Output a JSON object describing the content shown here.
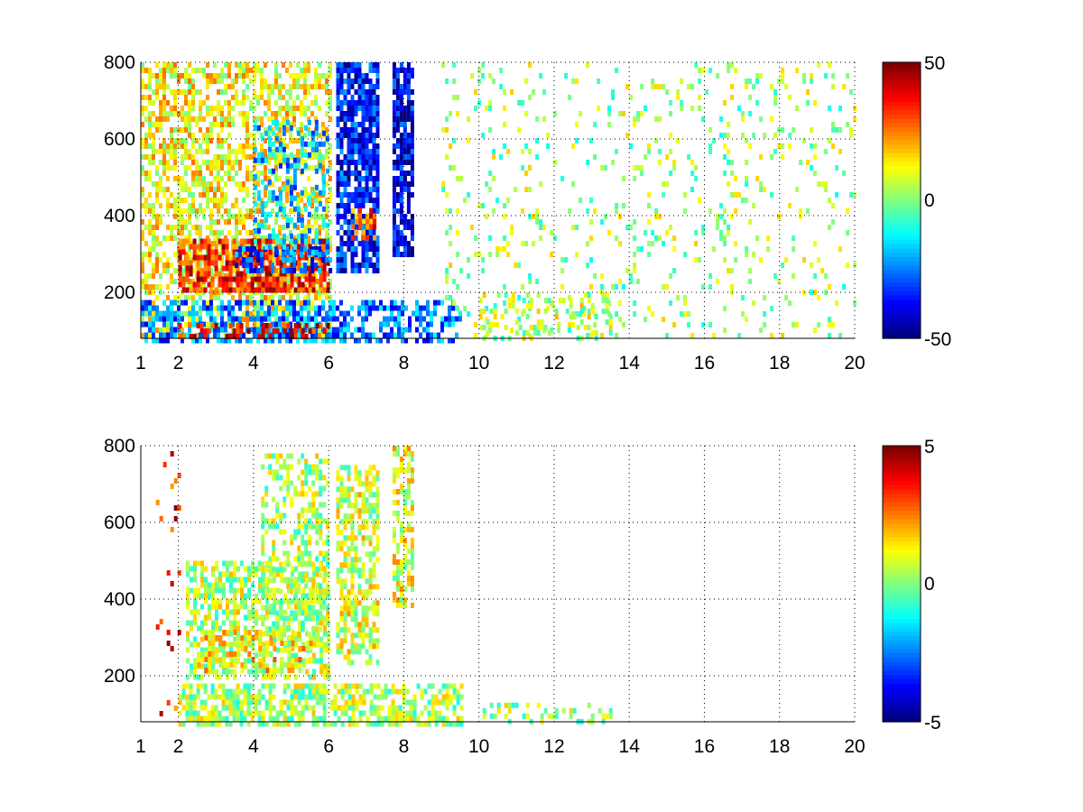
{
  "figure": {
    "background": "#ffffff",
    "colormap": "jet"
  },
  "chart_data": [
    {
      "type": "heatmap",
      "title": "",
      "xlabel": "",
      "ylabel": "",
      "xlim": [
        1,
        20
      ],
      "ylim": [
        80,
        800
      ],
      "x_ticks": [
        "1",
        "2",
        "4",
        "6",
        "8",
        "10",
        "12",
        "14",
        "16",
        "18",
        "20"
      ],
      "y_ticks": [
        "200",
        "400",
        "600",
        "800"
      ],
      "grid": true,
      "colorbar": {
        "min": -50,
        "max": 50,
        "labels": [
          "50",
          "0",
          "-50"
        ]
      },
      "features": [
        {
          "x0": 1.0,
          "x1": 6.0,
          "y0": 80,
          "y1": 800,
          "value": 12,
          "density": 0.55
        },
        {
          "x0": 2.0,
          "x1": 6.0,
          "y0": 200,
          "y1": 340,
          "value": 35,
          "density": 0.7
        },
        {
          "x0": 3.5,
          "x1": 6.0,
          "y0": 250,
          "y1": 320,
          "value": -30,
          "density": 0.45
        },
        {
          "x0": 4.0,
          "x1": 6.0,
          "y0": 300,
          "y1": 650,
          "value": -20,
          "density": 0.35
        },
        {
          "x0": 6.2,
          "x1": 7.3,
          "y0": 250,
          "y1": 800,
          "value": -35,
          "density": 0.8
        },
        {
          "x0": 6.6,
          "x1": 7.2,
          "y0": 340,
          "y1": 420,
          "value": 30,
          "density": 0.6
        },
        {
          "x0": 7.7,
          "x1": 8.2,
          "y0": 300,
          "y1": 800,
          "value": -40,
          "density": 0.8
        },
        {
          "x0": 1.0,
          "x1": 9.5,
          "y0": 80,
          "y1": 180,
          "value": -25,
          "density": 0.6
        },
        {
          "x0": 2.0,
          "x1": 6.0,
          "y0": 80,
          "y1": 120,
          "value": 40,
          "density": 0.5
        },
        {
          "x0": 9.0,
          "x1": 20.0,
          "y0": 80,
          "y1": 800,
          "value": 3,
          "density": 0.1
        },
        {
          "x0": 10.0,
          "x1": 13.5,
          "y0": 80,
          "y1": 200,
          "value": 5,
          "density": 0.25
        }
      ]
    },
    {
      "type": "heatmap",
      "title": "",
      "xlabel": "",
      "ylabel": "",
      "xlim": [
        1,
        20
      ],
      "ylim": [
        80,
        800
      ],
      "x_ticks": [
        "1",
        "2",
        "4",
        "6",
        "8",
        "10",
        "12",
        "14",
        "16",
        "18",
        "20"
      ],
      "y_ticks": [
        "200",
        "400",
        "600",
        "800"
      ],
      "grid": true,
      "colorbar": {
        "min": -5,
        "max": 5,
        "labels": [
          "5",
          "0",
          "-5"
        ]
      },
      "features": [
        {
          "x0": 2.2,
          "x1": 6.0,
          "y0": 200,
          "y1": 500,
          "value": 0.5,
          "density": 0.55
        },
        {
          "x0": 2.5,
          "x1": 5.5,
          "y0": 220,
          "y1": 320,
          "value": 1.5,
          "density": 0.4
        },
        {
          "x0": 4.2,
          "x1": 6.0,
          "y0": 300,
          "y1": 780,
          "value": 0.5,
          "density": 0.45
        },
        {
          "x0": 6.2,
          "x1": 7.3,
          "y0": 230,
          "y1": 750,
          "value": 0.8,
          "density": 0.6
        },
        {
          "x0": 7.7,
          "x1": 8.2,
          "y0": 380,
          "y1": 800,
          "value": 1.0,
          "density": 0.6
        },
        {
          "x0": 2.0,
          "x1": 9.5,
          "y0": 80,
          "y1": 180,
          "value": 0.4,
          "density": 0.65
        },
        {
          "x0": 10.0,
          "x1": 13.5,
          "y0": 80,
          "y1": 130,
          "value": 0.3,
          "density": 0.3
        },
        {
          "x0": 1.4,
          "x1": 2.0,
          "y0": 80,
          "y1": 800,
          "value": 3.5,
          "density": 0.06
        }
      ]
    }
  ]
}
